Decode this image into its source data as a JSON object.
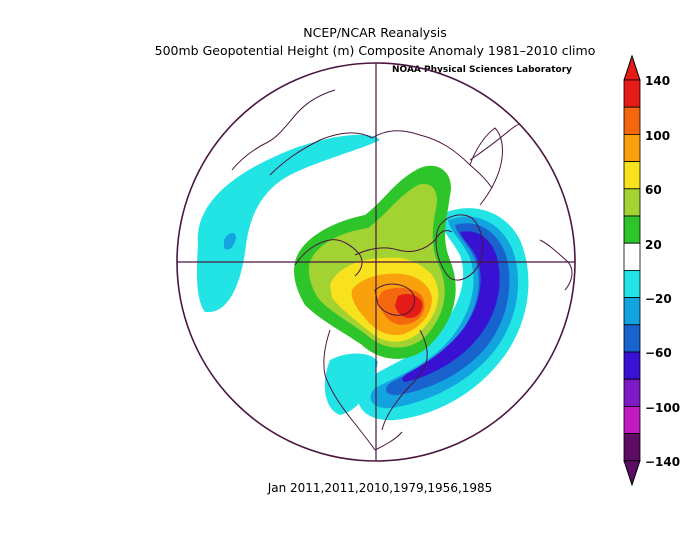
{
  "header": {
    "title_line1": "NCEP/NCAR Reanalysis",
    "title_line2": "500mb Geopotential Height (m) Composite Anomaly 1981–2010 climo",
    "credit": "NOAA Physical Sciences Laboratory"
  },
  "caption": "Jan 2011,2011,2010,1979,1956,1985",
  "colorbar": {
    "labels": [
      "140",
      "100",
      "60",
      "20",
      "−20",
      "−60",
      "−100",
      "−140"
    ],
    "bins": [
      {
        "value": 130,
        "color": "#e41b16"
      },
      {
        "value": 110,
        "color": "#f5670e"
      },
      {
        "value": 90,
        "color": "#f9a10d"
      },
      {
        "value": 70,
        "color": "#f8e21d"
      },
      {
        "value": 50,
        "color": "#a3d333"
      },
      {
        "value": 30,
        "color": "#2ec52a"
      },
      {
        "value": 0,
        "color": "#ffffff"
      },
      {
        "value": -30,
        "color": "#22e4e5"
      },
      {
        "value": -50,
        "color": "#13a4e0"
      },
      {
        "value": -70,
        "color": "#1963cf"
      },
      {
        "value": -90,
        "color": "#3911d2"
      },
      {
        "value": -110,
        "color": "#7d1bc6"
      },
      {
        "value": -130,
        "color": "#c11bbf"
      },
      {
        "value": -150,
        "color": "#5c0c62"
      }
    ],
    "top_arrow_color": "#e41b16",
    "bottom_arrow_color": "#5c0c62"
  },
  "colors": {
    "coastline": "#4a1640",
    "map_border": "#4a1640"
  }
}
